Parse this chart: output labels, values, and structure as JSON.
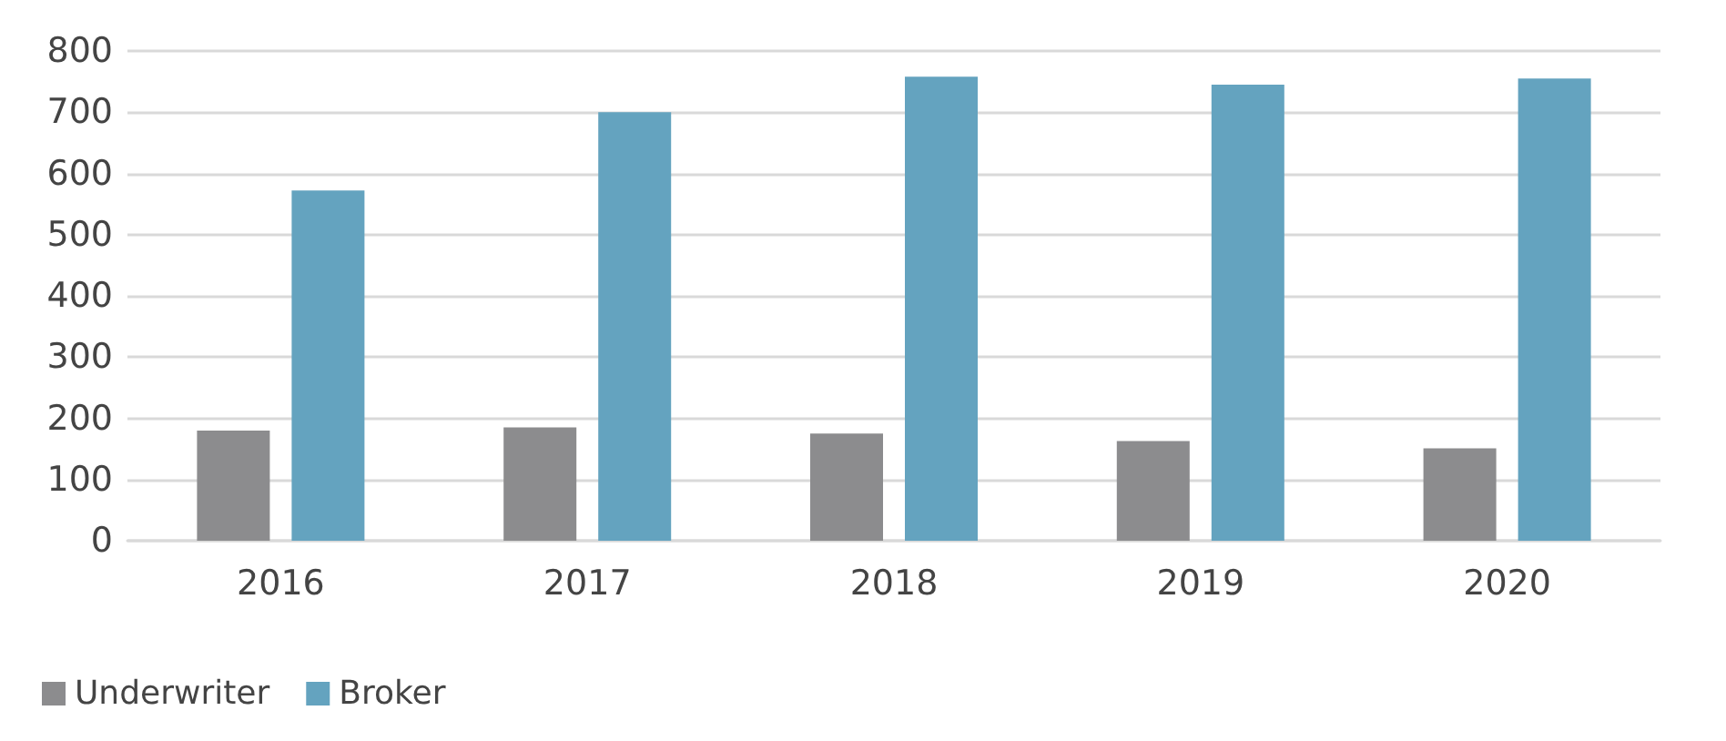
{
  "chart_data": {
    "type": "bar",
    "categories": [
      "2016",
      "2017",
      "2018",
      "2019",
      "2020"
    ],
    "series": [
      {
        "name": "Underwriter",
        "color": "#8c8c8e",
        "values": [
          180,
          185,
          175,
          163,
          151
        ]
      },
      {
        "name": "Broker",
        "color": "#64a3bf",
        "values": [
          572,
          700,
          758,
          745,
          755
        ]
      }
    ],
    "ylim": [
      0,
      800
    ],
    "yticks": [
      0,
      100,
      200,
      300,
      400,
      500,
      600,
      700,
      800
    ],
    "grid": "y",
    "legend": "bottom left"
  }
}
